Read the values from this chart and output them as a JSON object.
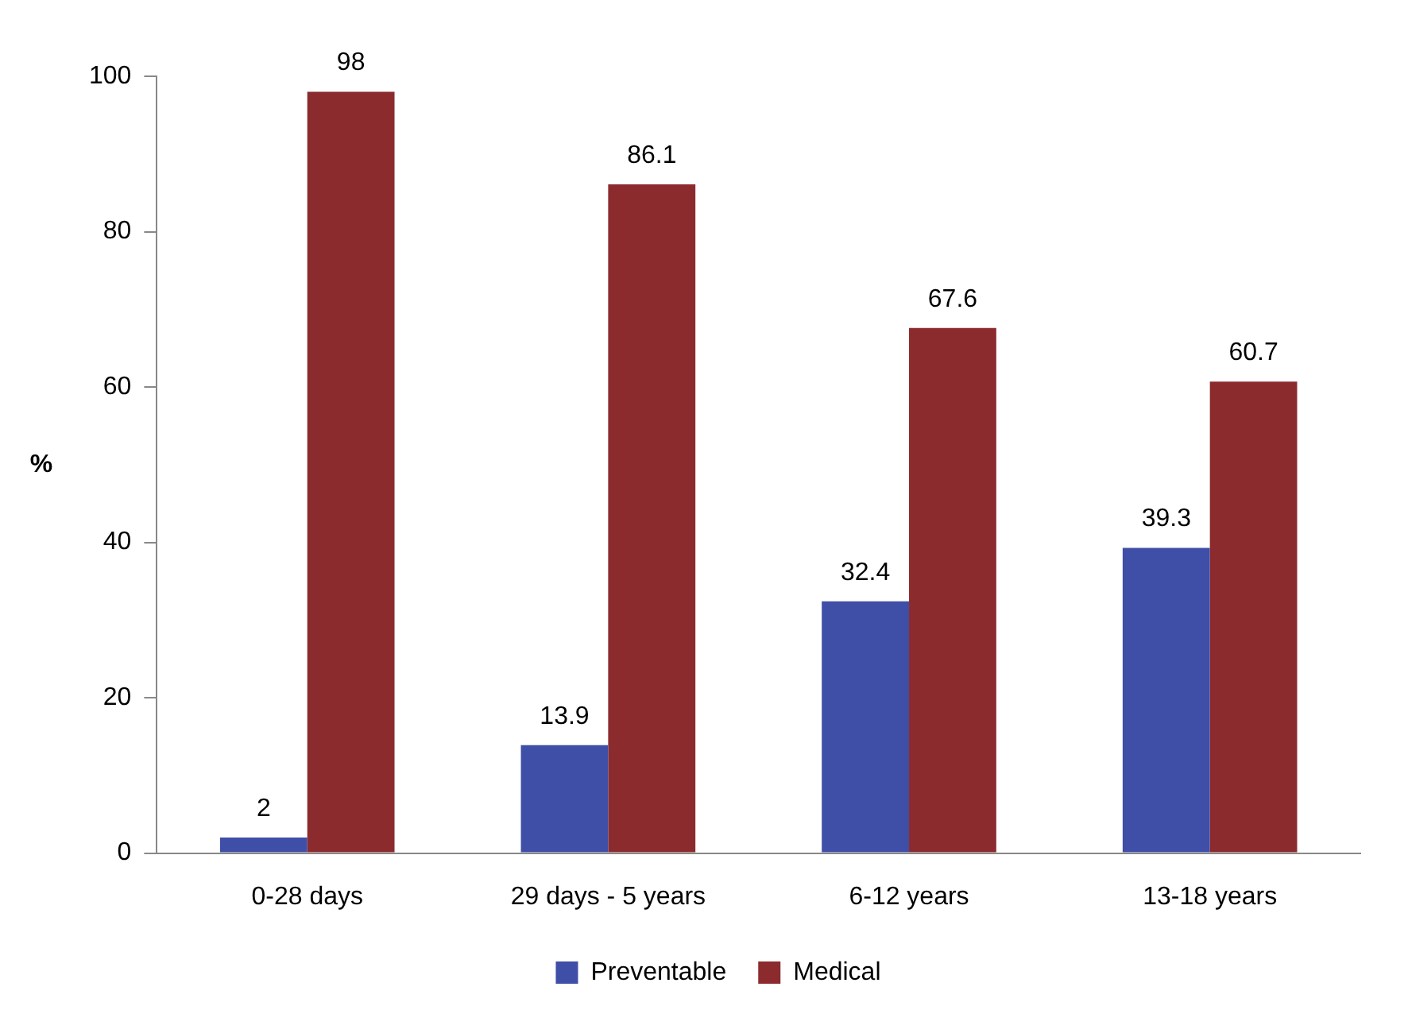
{
  "chart_data": {
    "type": "bar",
    "ylabel": "%",
    "categories": [
      "0-28 days",
      "29 days - 5 years",
      "6-12 years",
      "13-18 years"
    ],
    "series": [
      {
        "name": "Preventable",
        "color": "#3f4ea6",
        "values": [
          2,
          13.9,
          32.4,
          39.3
        ]
      },
      {
        "name": "Medical",
        "color": "#8b2b2e",
        "values": [
          98,
          86.1,
          67.6,
          60.7
        ]
      }
    ],
    "ylim": [
      0,
      100
    ],
    "yticks": [
      0,
      20,
      40,
      60,
      80,
      100
    ],
    "grid": false,
    "legend": "bottom",
    "data_labels": true
  }
}
